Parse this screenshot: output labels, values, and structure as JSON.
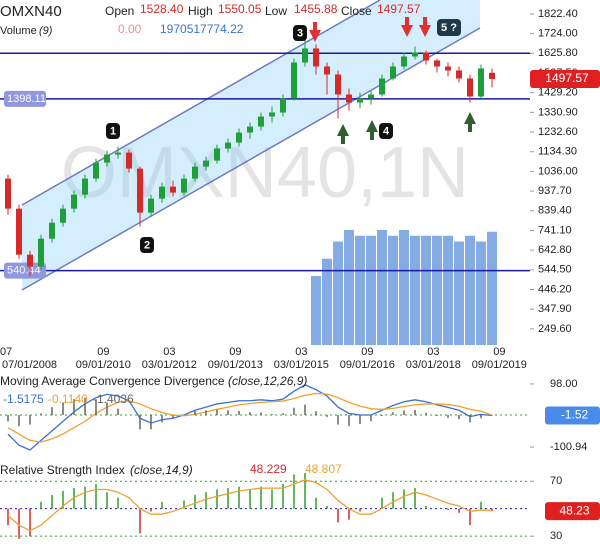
{
  "chart_data": [
    {
      "type": "candlestick",
      "title": "OMXN40",
      "labels": {
        "open": "Open",
        "high": "High",
        "low": "Low",
        "close": "Close"
      },
      "last_labels": {
        "open": "1528.40",
        "high": "1550.05",
        "low": "1455.88",
        "close": "1497.57"
      },
      "volume_title": "Volume",
      "volume_period": "(9)",
      "volume_readout": [
        "0.00",
        "1970517774.22"
      ],
      "watermark": "OMXN40,1N",
      "annotations": [
        "1",
        "2",
        "3",
        "4",
        "5 ?"
      ],
      "open": [
        1000,
        850,
        620,
        560,
        700,
        780,
        850,
        920,
        1000,
        1080,
        1120,
        1130,
        1050,
        830,
        900,
        960,
        930,
        1000,
        1060,
        1090,
        1150,
        1180,
        1230,
        1260,
        1310,
        1330,
        1400,
        1580,
        1650,
        1560,
        1520,
        1420,
        1380,
        1400,
        1420,
        1500,
        1560,
        1610,
        1630,
        1590,
        1560,
        1540,
        1500,
        1410,
        1528.4
      ],
      "high": [
        1020,
        870,
        640,
        720,
        800,
        870,
        940,
        1020,
        1100,
        1140,
        1160,
        1145,
        1060,
        920,
        980,
        990,
        1020,
        1080,
        1110,
        1170,
        1200,
        1250,
        1280,
        1330,
        1360,
        1420,
        1600,
        1700,
        1670,
        1580,
        1540,
        1450,
        1430,
        1440,
        1520,
        1580,
        1630,
        1660,
        1640,
        1600,
        1580,
        1560,
        1520,
        1570,
        1550.05
      ],
      "low": [
        820,
        600,
        510,
        545,
        680,
        760,
        830,
        900,
        985,
        1060,
        1100,
        1030,
        760,
        810,
        880,
        910,
        915,
        985,
        1040,
        1075,
        1130,
        1160,
        1200,
        1240,
        1280,
        1310,
        1390,
        1560,
        1520,
        1420,
        1300,
        1340,
        1350,
        1370,
        1410,
        1490,
        1545,
        1595,
        1570,
        1530,
        1510,
        1480,
        1380,
        1400,
        1455.88
      ],
      "close": [
        850,
        620,
        560,
        700,
        780,
        850,
        920,
        1000,
        1080,
        1120,
        1130,
        1050,
        830,
        900,
        960,
        930,
        1000,
        1060,
        1090,
        1150,
        1180,
        1230,
        1260,
        1310,
        1330,
        1400,
        1580,
        1650,
        1560,
        1520,
        1420,
        1380,
        1400,
        1420,
        1500,
        1560,
        1610,
        1630,
        1590,
        1560,
        1540,
        1500,
        1410,
        1550,
        1497.57
      ],
      "up_color": "#1f9e3a",
      "down_color": "#d62a2a",
      "volume": [
        null,
        null,
        null,
        null,
        null,
        null,
        null,
        null,
        null,
        null,
        null,
        null,
        null,
        null,
        null,
        null,
        null,
        null,
        null,
        null,
        null,
        null,
        null,
        null,
        null,
        null,
        null,
        null,
        1200000000,
        1500000000,
        1800000000,
        2000000000,
        1900000000,
        1900000000,
        2000000000,
        1900000000,
        2000000000,
        1900000000,
        1900000000,
        1900000000,
        1900000000,
        1800000000,
        1900000000,
        1800000000,
        1970000000
      ],
      "volume_color": "#5b8fd9",
      "vlim": [
        0,
        6000000000
      ],
      "levels": [
        1625.8,
        1398.11,
        540.44
      ],
      "level_color": "#1a1aa0",
      "ylim": [
        169,
        1892
      ],
      "yticks": [
        {
          "value": 1822.4,
          "label": "1822.40"
        },
        {
          "value": 1724,
          "label": "1724.00"
        },
        {
          "value": 1625.8,
          "label": "1625.80"
        },
        {
          "value": 1527.5,
          "label": "1527.50"
        },
        {
          "value": 1429.2,
          "label": "1429.20"
        },
        {
          "value": 1330.9,
          "label": "1330.90"
        },
        {
          "value": 1232.6,
          "label": "1232.60"
        },
        {
          "value": 1134.3,
          "label": "1134.30"
        },
        {
          "value": 1036,
          "label": "1036.00"
        },
        {
          "value": 937.7,
          "label": "937.70"
        },
        {
          "value": 839.4,
          "label": "839.40"
        },
        {
          "value": 741.1,
          "label": "741.10"
        },
        {
          "value": 642.8,
          "label": "642.80"
        },
        {
          "value": 544.5,
          "label": "544.50"
        },
        {
          "value": 446.2,
          "label": "446.20"
        },
        {
          "value": 347.9,
          "label": "347.90"
        },
        {
          "value": 249.6,
          "label": "249.60"
        }
      ],
      "xticks": [
        {
          "value": 0,
          "label": "07"
        },
        {
          "value": 8.667,
          "label": "09"
        },
        {
          "value": 14.667,
          "label": "03"
        },
        {
          "value": 20.667,
          "label": "09"
        },
        {
          "value": 26.667,
          "label": "03"
        },
        {
          "value": 32.667,
          "label": "09"
        },
        {
          "value": 38.667,
          "label": "03"
        },
        {
          "value": 44.667,
          "label": "09"
        }
      ],
      "xtick_dates": [
        {
          "value": 0,
          "label": "07/01/2008"
        },
        {
          "value": 8.667,
          "label": "09/01/2010"
        },
        {
          "value": 14.667,
          "label": "03/01/2012"
        },
        {
          "value": 20.667,
          "label": "09/01/2013"
        },
        {
          "value": 26.667,
          "label": "03/01/2015"
        },
        {
          "value": 32.667,
          "label": "09/01/2016"
        },
        {
          "value": 38.667,
          "label": "03/01/2018"
        },
        {
          "value": 44.667,
          "label": "09/01/2019"
        }
      ]
    },
    {
      "type": "macd",
      "title": "Moving Average Convergence Divergence",
      "subtitle": "(close,12,26,9)",
      "series": [
        {
          "color": "#3a6fd8",
          "values": [
            -60,
            -95,
            -110,
            -80,
            -50,
            -20,
            10,
            35,
            55,
            65,
            60,
            45,
            -10,
            -25,
            -15,
            -10,
            0,
            15,
            25,
            35,
            40,
            45,
            45,
            48,
            45,
            50,
            75,
            95,
            80,
            60,
            25,
            5,
            0,
            0,
            15,
            30,
            42,
            48,
            42,
            32,
            24,
            15,
            -5,
            2,
            -1.5175
          ]
        },
        {
          "color": "#f0a030",
          "values": [
            -40,
            -60,
            -80,
            -85,
            -75,
            -60,
            -40,
            -20,
            5,
            25,
            40,
            45,
            35,
            20,
            8,
            0,
            -2,
            2,
            10,
            18,
            25,
            32,
            36,
            40,
            42,
            44,
            52,
            62,
            68,
            66,
            55,
            40,
            28,
            20,
            18,
            21,
            27,
            32,
            35,
            35,
            33,
            28,
            18,
            12,
            -0.114
          ],
          "last_label": "-0.1140"
        },
        {
          "color": "#666666",
          "style": "bar",
          "values": [
            -20,
            -35,
            -30,
            5,
            25,
            40,
            50,
            55,
            50,
            40,
            20,
            0,
            -45,
            -45,
            -23,
            -10,
            2,
            13,
            15,
            17,
            15,
            13,
            9,
            8,
            3,
            6,
            23,
            33,
            12,
            -6,
            -30,
            -35,
            -28,
            -20,
            -3,
            9,
            15,
            16,
            7,
            -3,
            -9,
            -13,
            -23,
            -10,
            -1.4036
          ]
        }
      ],
      "tag": "-1.52",
      "ylim": [
        -148,
        123
      ],
      "yticks": [
        {
          "value": 98,
          "label": "98.00"
        },
        -100.94
      ],
      "zero_line": true
    },
    {
      "type": "rsi",
      "title": "Relative Strength Index",
      "subtitle": "(close,14,9)",
      "series": [
        {
          "color": "#d62a2a",
          "up_color": "#2ca02c",
          "style": "bar",
          "base": 50,
          "values": [
            38,
            28,
            30,
            55,
            60,
            63,
            65,
            66,
            68,
            62,
            58,
            50,
            32,
            48,
            55,
            50,
            56,
            60,
            62,
            64,
            65,
            66,
            64,
            66,
            64,
            68,
            75,
            76,
            58,
            52,
            40,
            42,
            48,
            50,
            58,
            62,
            64,
            65,
            52,
            50,
            49,
            47,
            38,
            55,
            48.229
          ]
        },
        {
          "color": "#f0a030",
          "values": [
            45,
            38,
            34,
            38,
            45,
            52,
            58,
            62,
            64,
            64,
            62,
            58,
            50,
            46,
            46,
            48,
            51,
            54,
            57,
            59,
            61,
            63,
            64,
            65,
            65,
            65,
            68,
            71,
            69,
            64,
            56,
            50,
            46,
            46,
            50,
            55,
            59,
            62,
            60,
            57,
            54,
            52,
            48,
            49,
            48.807
          ]
        }
      ],
      "tag": "48.23",
      "ylim": [
        17,
        84
      ],
      "yticks": [
        70,
        30
      ],
      "levels": [
        70,
        50,
        30
      ]
    }
  ]
}
